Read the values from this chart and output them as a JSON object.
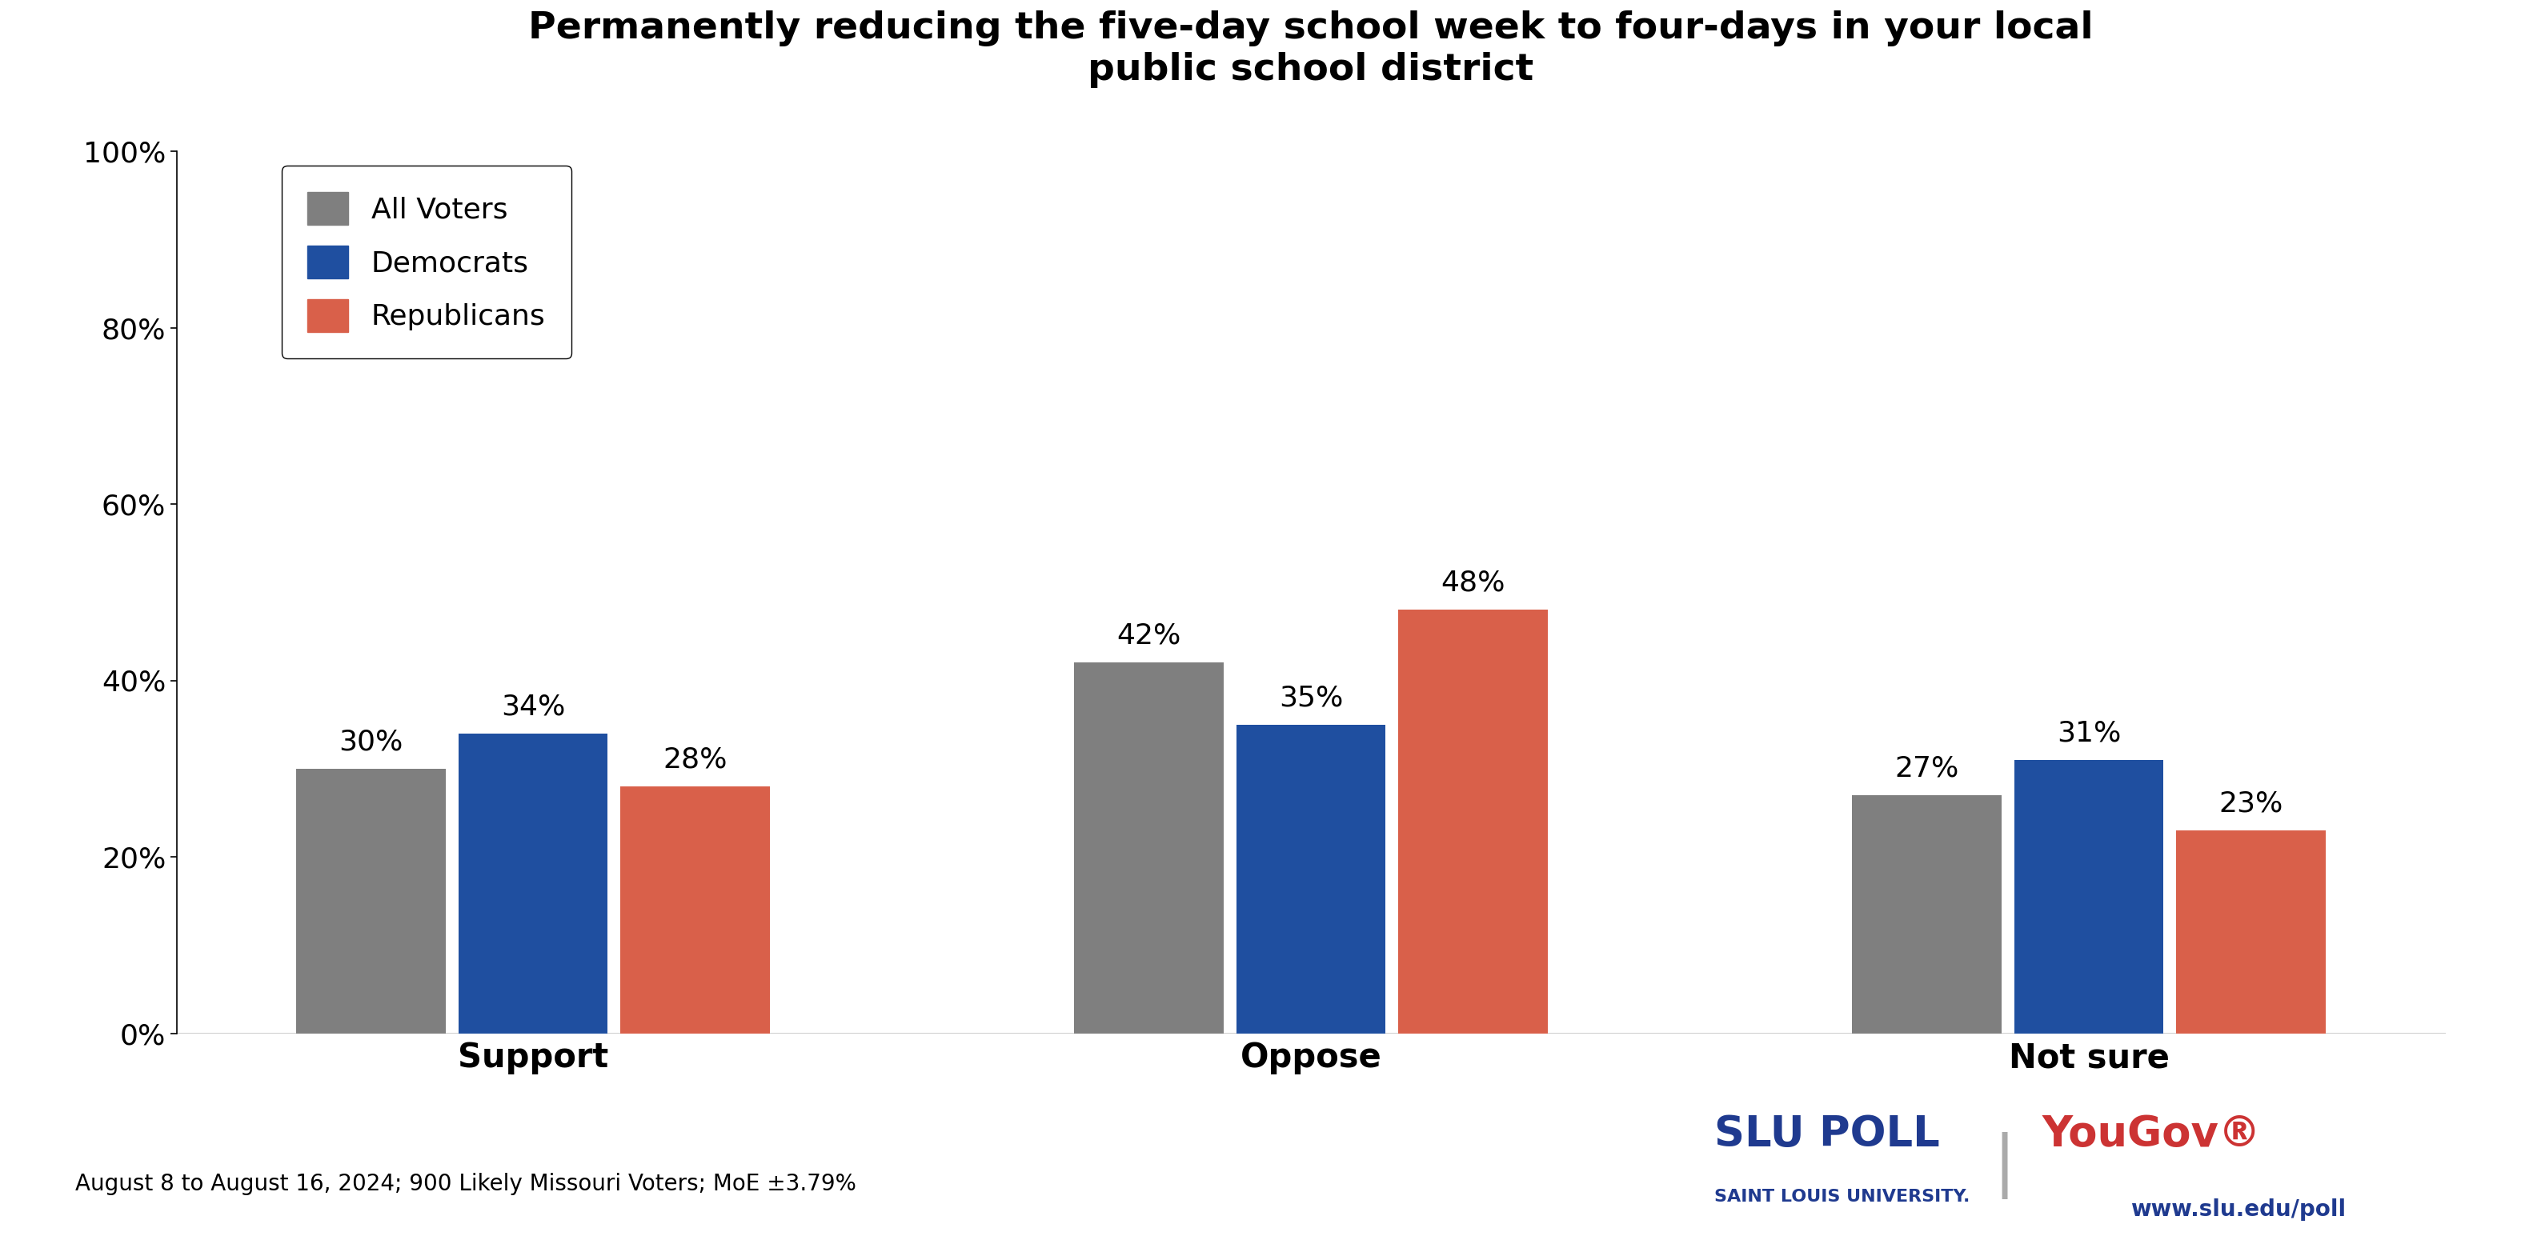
{
  "title": "Permanently reducing the five-day school week to four-days in your local\npublic school district",
  "categories": [
    "Support",
    "Oppose",
    "Not sure"
  ],
  "groups": [
    "All Voters",
    "Democrats",
    "Republicans"
  ],
  "values": {
    "All Voters": [
      30,
      42,
      27
    ],
    "Democrats": [
      34,
      35,
      31
    ],
    "Republicans": [
      28,
      48,
      23
    ]
  },
  "colors": {
    "All Voters": "#7f7f7f",
    "Democrats": "#1f4fa0",
    "Republicans": "#d9604a"
  },
  "ylim": [
    0,
    100
  ],
  "yticks": [
    0,
    20,
    40,
    60,
    80,
    100
  ],
  "bar_width": 0.25,
  "title_fontsize": 34,
  "tick_fontsize": 26,
  "cat_label_fontsize": 30,
  "legend_fontsize": 26,
  "annotation_fontsize": 26,
  "footnote": "August 8 to August 16, 2024; 900 Likely Missouri Voters; MoE ±3.79%",
  "footnote_fontsize": 20,
  "background_color": "#ffffff",
  "slu_text": "SLU POLL",
  "slu_subtext": "SAINT LOUIS UNIVERSITY.",
  "yougov_text": "YouGov®",
  "website": "www.slu.edu/poll",
  "logo_color_slu": "#1f3a8f",
  "logo_color_yougov": "#cc3333"
}
